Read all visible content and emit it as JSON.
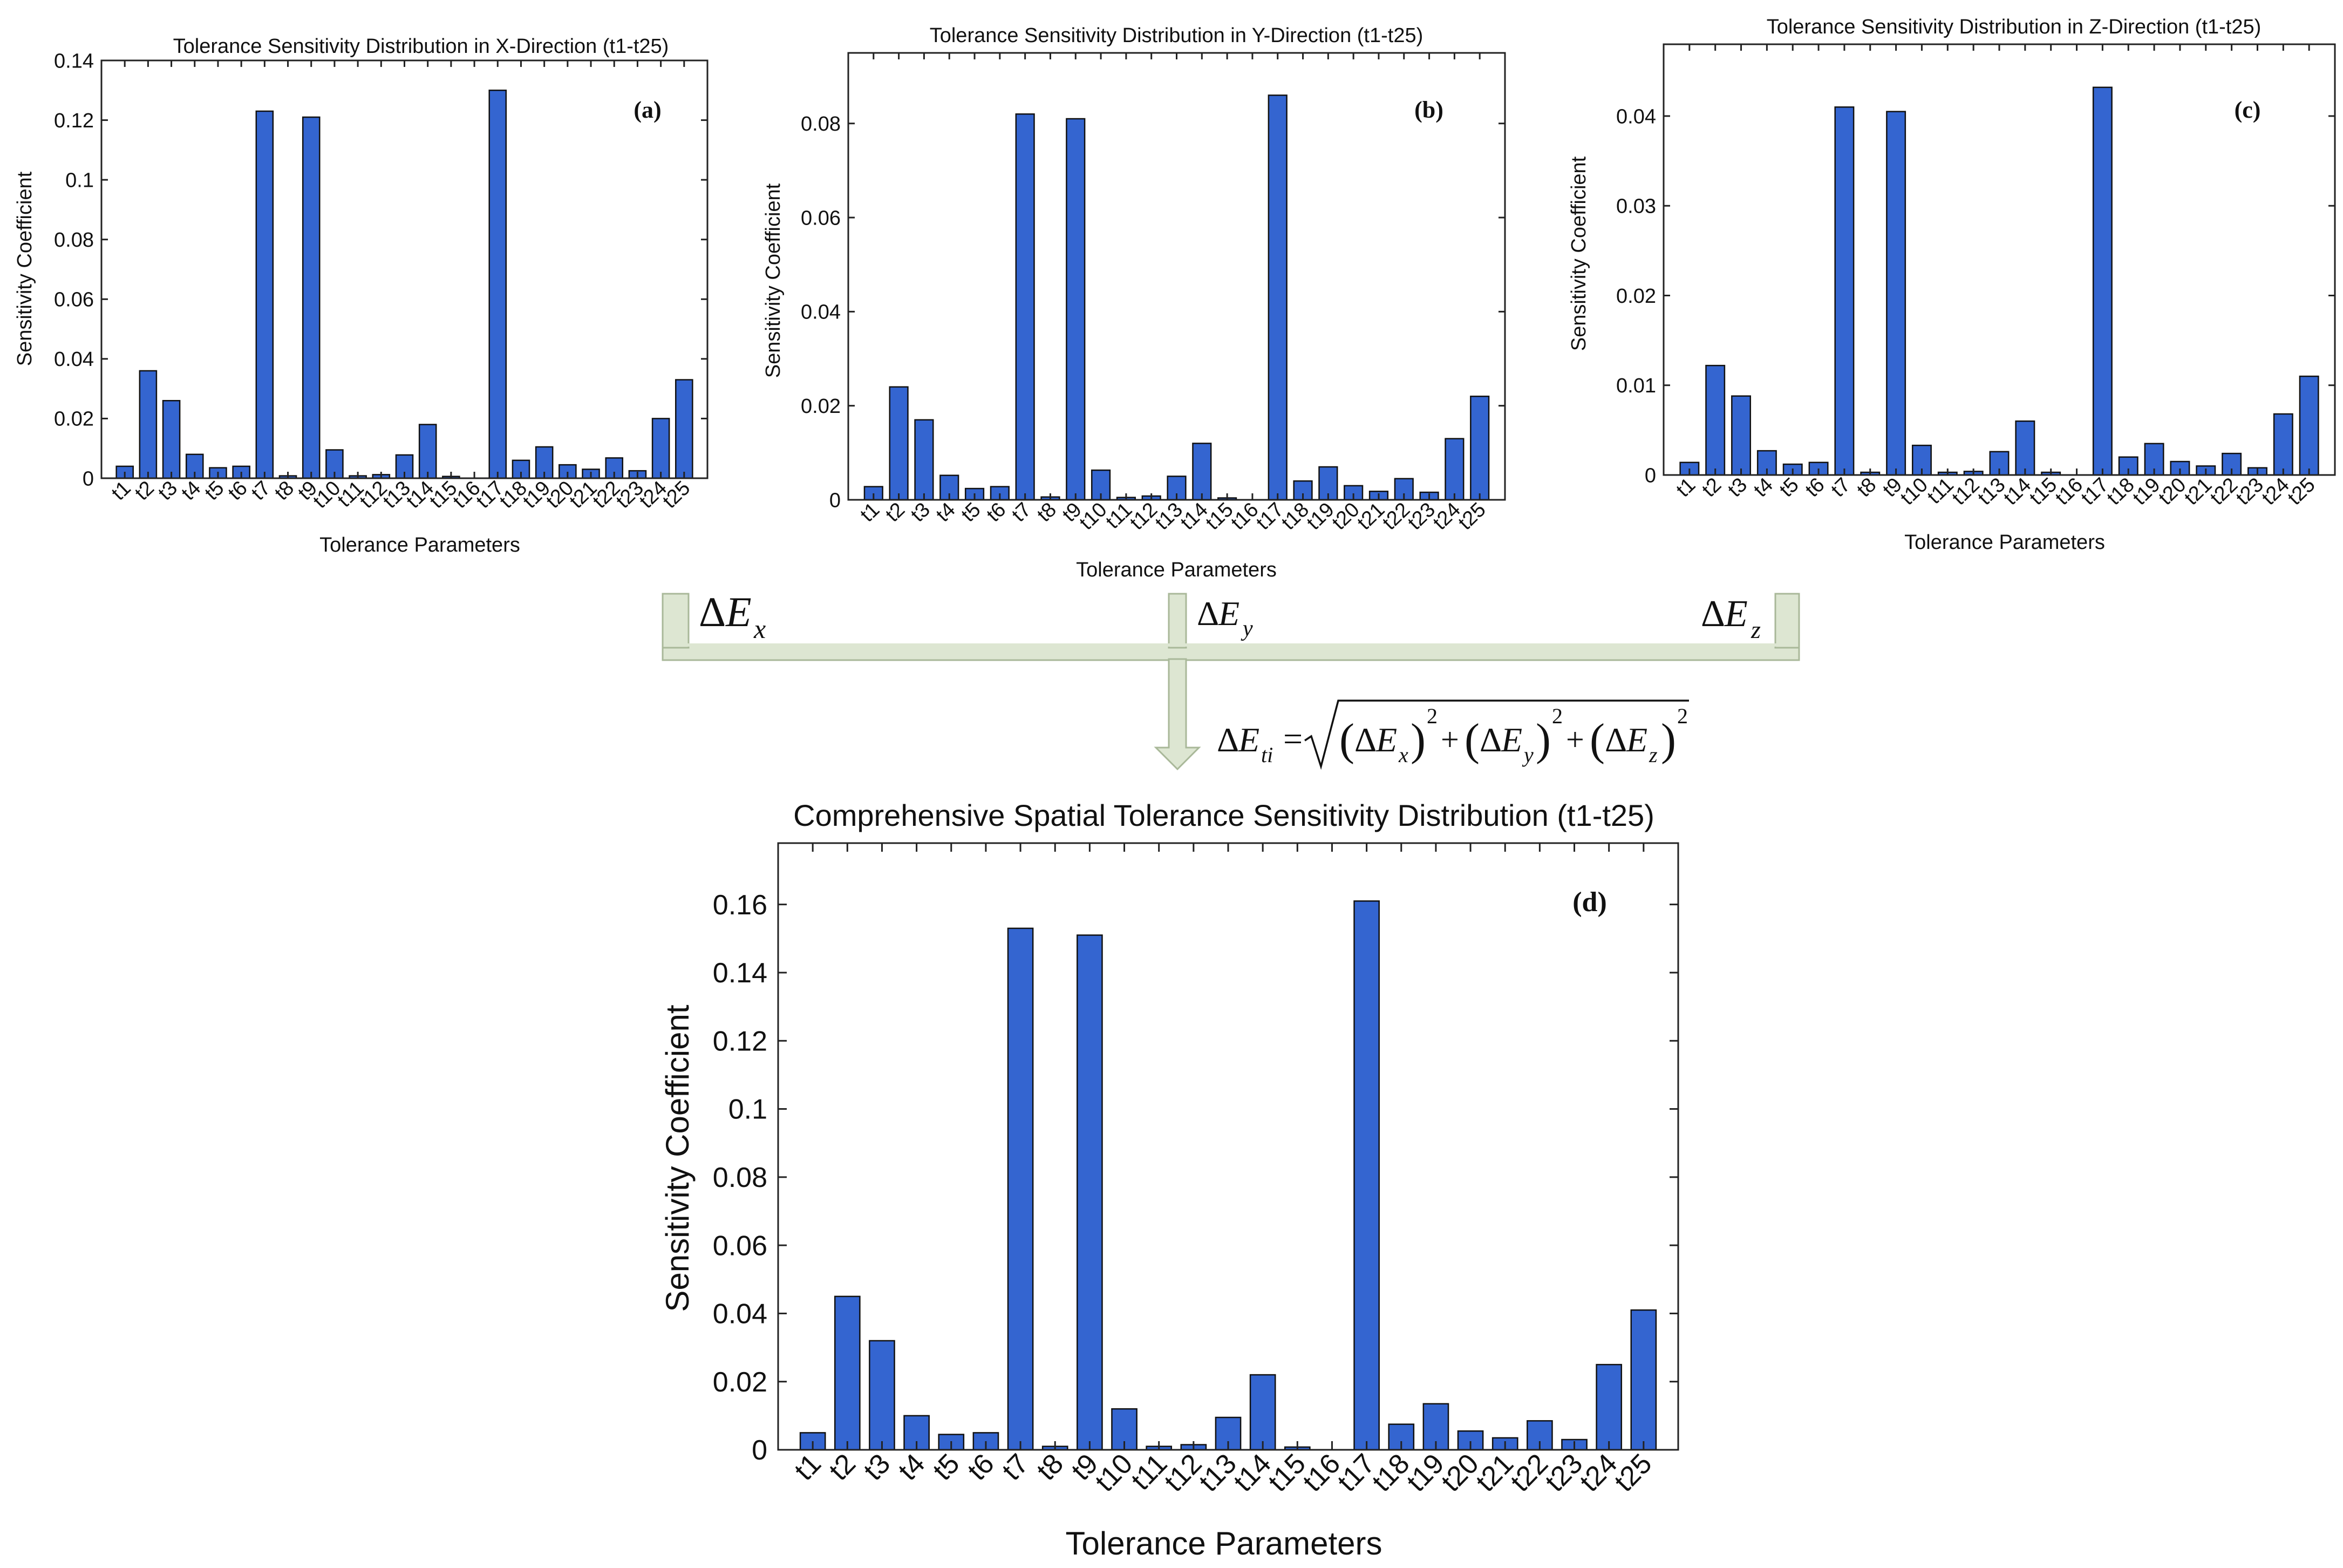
{
  "chart_data": [
    {
      "id": "a",
      "type": "bar",
      "title": "Tolerance Sensitivity Distribution in X-Direction (t1-t25)",
      "panel_label": "(a)",
      "xlabel": "Tolerance Parameters",
      "ylabel": "Sensitivity Coefficient",
      "ylim": [
        0,
        0.14
      ],
      "yticks": [
        0,
        0.02,
        0.04,
        0.06,
        0.08,
        0.1,
        0.12,
        0.14
      ],
      "ytick_labels": [
        "0",
        "0.02",
        "0.04",
        "0.06",
        "0.08",
        "0.1",
        "0.12",
        "0.14"
      ],
      "categories": [
        "t1",
        "t2",
        "t3",
        "t4",
        "t5",
        "t6",
        "t7",
        "t8",
        "t9",
        "t10",
        "t11",
        "t12",
        "t13",
        "t14",
        "t15",
        "t16",
        "t17",
        "t18",
        "t19",
        "t20",
        "t21",
        "t22",
        "t23",
        "t24",
        "t25"
      ],
      "values": [
        0.004,
        0.036,
        0.026,
        0.008,
        0.0035,
        0.004,
        0.123,
        0.0008,
        0.121,
        0.0095,
        0.0008,
        0.0012,
        0.0078,
        0.018,
        0.0006,
        0.0,
        0.13,
        0.006,
        0.0105,
        0.0045,
        0.003,
        0.0068,
        0.0025,
        0.02,
        0.033
      ]
    },
    {
      "id": "b",
      "type": "bar",
      "title": "Tolerance Sensitivity Distribution in Y-Direction (t1-t25)",
      "panel_label": "(b)",
      "xlabel": "Tolerance Parameters",
      "ylabel": "Sensitivity Coefficient",
      "ylim": [
        0,
        0.095
      ],
      "yticks": [
        0,
        0.02,
        0.04,
        0.06,
        0.08
      ],
      "ytick_labels": [
        "0",
        "0.02",
        "0.04",
        "0.06",
        "0.08"
      ],
      "categories": [
        "t1",
        "t2",
        "t3",
        "t4",
        "t5",
        "t6",
        "t7",
        "t8",
        "t9",
        "t10",
        "t11",
        "t12",
        "t13",
        "t14",
        "t15",
        "t16",
        "t17",
        "t18",
        "t19",
        "t20",
        "t21",
        "t22",
        "t23",
        "t24",
        "t25"
      ],
      "values": [
        0.0028,
        0.024,
        0.017,
        0.0052,
        0.0024,
        0.0028,
        0.082,
        0.0006,
        0.081,
        0.0063,
        0.0005,
        0.0008,
        0.005,
        0.012,
        0.0004,
        0.0,
        0.086,
        0.004,
        0.007,
        0.003,
        0.0018,
        0.0045,
        0.0016,
        0.013,
        0.022
      ]
    },
    {
      "id": "c",
      "type": "bar",
      "title": "Tolerance Sensitivity Distribution in Z-Direction (t1-t25)",
      "panel_label": "(c)",
      "xlabel": "Tolerance Parameters",
      "ylabel": "Sensitivity Coefficient",
      "ylim": [
        0,
        0.048
      ],
      "yticks": [
        0,
        0.01,
        0.02,
        0.03,
        0.04
      ],
      "ytick_labels": [
        "0",
        "0.01",
        "0.02",
        "0.03",
        "0.04"
      ],
      "categories": [
        "t1",
        "t2",
        "t3",
        "t4",
        "t5",
        "t6",
        "t7",
        "t8",
        "t9",
        "t10",
        "t11",
        "t12",
        "t13",
        "t14",
        "t15",
        "t16",
        "t17",
        "t18",
        "t19",
        "t20",
        "t21",
        "t22",
        "t23",
        "t24",
        "t25"
      ],
      "values": [
        0.0014,
        0.0122,
        0.0088,
        0.0027,
        0.0012,
        0.0014,
        0.041,
        0.0003,
        0.0405,
        0.0033,
        0.0003,
        0.0004,
        0.0026,
        0.006,
        0.0003,
        0.0,
        0.0432,
        0.002,
        0.0035,
        0.0015,
        0.001,
        0.0024,
        0.0008,
        0.0068,
        0.011
      ]
    },
    {
      "id": "d",
      "type": "bar",
      "title": "Comprehensive Spatial Tolerance Sensitivity Distribution (t1-t25)",
      "panel_label": "(d)",
      "xlabel": "Tolerance Parameters",
      "ylabel": "Sensitivity Coefficient",
      "ylim": [
        0,
        0.178
      ],
      "yticks": [
        0,
        0.02,
        0.04,
        0.06,
        0.08,
        0.1,
        0.12,
        0.14,
        0.16
      ],
      "ytick_labels": [
        "0",
        "0.02",
        "0.04",
        "0.06",
        "0.08",
        "0.1",
        "0.12",
        "0.14",
        "0.16"
      ],
      "categories": [
        "t1",
        "t2",
        "t3",
        "t4",
        "t5",
        "t6",
        "t7",
        "t8",
        "t9",
        "t10",
        "t11",
        "t12",
        "t13",
        "t14",
        "t15",
        "t16",
        "t17",
        "t18",
        "t19",
        "t20",
        "t21",
        "t22",
        "t23",
        "t24",
        "t25"
      ],
      "values": [
        0.005,
        0.045,
        0.032,
        0.01,
        0.0045,
        0.005,
        0.153,
        0.001,
        0.151,
        0.012,
        0.001,
        0.0015,
        0.0095,
        0.022,
        0.0008,
        0.0,
        0.161,
        0.0075,
        0.0135,
        0.0055,
        0.0035,
        0.0085,
        0.003,
        0.025,
        0.041
      ]
    }
  ],
  "flow": {
    "delta_symbol": "Δ",
    "e_symbol": "E",
    "x_sub": "x",
    "y_sub": "y",
    "z_sub": "z",
    "ti_sub": "ti",
    "equals": "=",
    "plus": "+",
    "lparen": "(",
    "rparen": ")",
    "exponent": "2"
  }
}
